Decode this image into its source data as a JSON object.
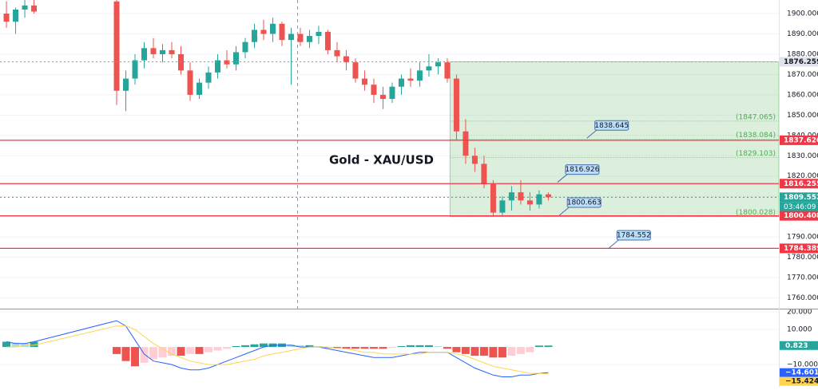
{
  "chart_data": [
    {
      "type": "candlestick",
      "title": "Gold - XAU/USD",
      "xlim": [
        -0.7,
        84.1
      ],
      "ylim": [
        1754.7,
        1906.7
      ],
      "yticks": [
        {
          "value": 1760,
          "label": "1760.000"
        },
        {
          "value": 1770,
          "label": "1770.000"
        },
        {
          "value": 1780,
          "label": "1780.000"
        },
        {
          "value": 1790,
          "label": "1790.000"
        },
        {
          "value": 1800,
          "label": "1800.000"
        },
        {
          "value": 1810,
          "label": "1810.000"
        },
        {
          "value": 1820,
          "label": "1820.000"
        },
        {
          "value": 1830,
          "label": "1830.000"
        },
        {
          "value": 1840,
          "label": "1840.000"
        },
        {
          "value": 1850,
          "label": "1850.000"
        },
        {
          "value": 1860,
          "label": "1860.000"
        },
        {
          "value": 1870,
          "label": "1870.000"
        },
        {
          "value": 1880,
          "label": "1880.000"
        },
        {
          "value": 1890,
          "label": "1890.000"
        },
        {
          "value": 1900,
          "label": "1900.000"
        }
      ],
      "grid": true,
      "up_color": "#26a69a",
      "down_color": "#ef5350",
      "candles": {
        "x": [
          0,
          1,
          2,
          3,
          12,
          13,
          14,
          15,
          16,
          17,
          18,
          19,
          20,
          21,
          22,
          23,
          24,
          25,
          26,
          27,
          28,
          29,
          30,
          31,
          32,
          33,
          34,
          35,
          36,
          37,
          38,
          39,
          40,
          41,
          42,
          43,
          44,
          45,
          46,
          47,
          48,
          49,
          50,
          51,
          52,
          53,
          54,
          55,
          56,
          57,
          58,
          59
        ],
        "open": [
          1900,
          1896,
          1902,
          1904,
          1906,
          1862,
          1868,
          1877,
          1883,
          1880,
          1882,
          1880,
          1872,
          1860,
          1866,
          1871,
          1877,
          1875,
          1881,
          1886,
          1892,
          1890,
          1895,
          1887,
          1890,
          1886,
          1889,
          1891,
          1882,
          1879,
          1876,
          1868,
          1865,
          1860,
          1858,
          1864,
          1868,
          1867,
          1872,
          1874,
          1876,
          1868,
          1842,
          1830,
          1826,
          1816,
          1802,
          1808,
          1812,
          1808,
          1806,
          1811
        ],
        "high": [
          1906,
          1903,
          1907,
          1907,
          1907,
          1872,
          1880,
          1886,
          1888,
          1885,
          1886,
          1884,
          1876,
          1868,
          1874,
          1880,
          1882,
          1884,
          1888,
          1895,
          1897,
          1898,
          1896,
          1893,
          1893,
          1892,
          1894,
          1892,
          1886,
          1882,
          1878,
          1872,
          1868,
          1864,
          1866,
          1870,
          1873,
          1876,
          1880,
          1878,
          1878,
          1870,
          1848,
          1834,
          1830,
          1818,
          1810,
          1815,
          1818,
          1812,
          1813,
          1812
        ],
        "low": [
          1893,
          1890,
          1898,
          1900,
          1855,
          1852,
          1865,
          1873,
          1878,
          1876,
          1878,
          1870,
          1857,
          1858,
          1863,
          1868,
          1873,
          1872,
          1878,
          1883,
          1887,
          1886,
          1884,
          1865,
          1884,
          1883,
          1885,
          1880,
          1876,
          1872,
          1866,
          1862,
          1856,
          1853,
          1856,
          1860,
          1864,
          1864,
          1869,
          1870,
          1866,
          1838,
          1826,
          1822,
          1814,
          1800,
          1800,
          1803,
          1806,
          1803,
          1804,
          1808
        ],
        "close": [
          1896,
          1902,
          1904,
          1901,
          1862,
          1868,
          1877,
          1883,
          1880,
          1882,
          1880,
          1872,
          1860,
          1866,
          1871,
          1877,
          1875,
          1881,
          1886,
          1892,
          1890,
          1895,
          1887,
          1890,
          1886,
          1889,
          1891,
          1882,
          1879,
          1876,
          1868,
          1865,
          1860,
          1858,
          1864,
          1868,
          1867,
          1872,
          1874,
          1876,
          1868,
          1842,
          1830,
          1826,
          1816,
          1802,
          1808,
          1812,
          1808,
          1806,
          1811,
          1809.552
        ]
      },
      "crosshair_x": 31.7,
      "zone": {
        "x_start": 48.3,
        "top": 1876.259,
        "bottom": 1800.028,
        "color": "#4caf50"
      },
      "fib_levels": [
        {
          "value": 1847.065,
          "label": "(1847.065)"
        },
        {
          "value": 1838.084,
          "label": "(1838.084)"
        },
        {
          "value": 1829.103,
          "label": "(1829.103)"
        },
        {
          "value": 1800.028,
          "label": "(1800.028)"
        }
      ],
      "price_tags": [
        {
          "value": 1876.259,
          "label": "1876.259",
          "color": "#e0e3eb",
          "text_color": "#131722",
          "line": "dotted"
        },
        {
          "value": 1837.62,
          "label": "1837.620",
          "color": "#f23645",
          "text_color": "#ffffff",
          "line": "solid"
        },
        {
          "value": 1816.255,
          "label": "1816.255",
          "color": "#f23645",
          "text_color": "#ffffff",
          "line": "solid"
        },
        {
          "value": 1809.552,
          "label": "1809.552",
          "color": "#26a69a",
          "text_color": "#ffffff",
          "line": "dotted",
          "countdown": "03:46:09"
        },
        {
          "value": 1800.408,
          "label": "1800.408",
          "color": "#f23645",
          "text_color": "#ffffff",
          "line": "solid"
        },
        {
          "value": 1784.389,
          "label": "1784.389",
          "color": "#f23645",
          "text_color": "#ffffff",
          "line": "solid"
        }
      ],
      "callouts": [
        {
          "x": 63.2,
          "value": 1838.645,
          "label": "1838.645"
        },
        {
          "x": 60.0,
          "value": 1816.926,
          "label": "1816.926"
        },
        {
          "x": 60.2,
          "value": 1800.663,
          "label": "1800.663"
        },
        {
          "x": 65.6,
          "value": 1784.552,
          "label": "1784.552"
        }
      ]
    },
    {
      "type": "macd",
      "xlim": [
        -0.7,
        84.1
      ],
      "ylim": [
        -22.7,
        21.4
      ],
      "yticks": [
        {
          "value": -10,
          "label": "−10.000"
        },
        {
          "value": 10,
          "label": "10.000"
        },
        {
          "value": 20,
          "label": "20.000"
        }
      ],
      "colors": {
        "up_strong": "#26a69a",
        "up_weak": "#b2dfdb",
        "down_strong": "#ef5350",
        "down_weak": "#ffcdd2"
      },
      "x": [
        0,
        1,
        2,
        3,
        12,
        13,
        14,
        15,
        16,
        17,
        18,
        19,
        20,
        21,
        22,
        23,
        24,
        25,
        26,
        27,
        28,
        29,
        30,
        31,
        32,
        33,
        34,
        35,
        36,
        37,
        38,
        39,
        40,
        41,
        42,
        43,
        44,
        45,
        46,
        47,
        48,
        49,
        50,
        51,
        52,
        53,
        54,
        55,
        56,
        57,
        58,
        59
      ],
      "histogram": [
        3,
        2.5,
        2,
        3,
        -4,
        -8,
        -11,
        -9,
        -7,
        -6,
        -5,
        -5,
        -4,
        -4,
        -3,
        -2,
        -1,
        0.5,
        1,
        1.5,
        2,
        2,
        2,
        1.5,
        1,
        1,
        0.5,
        -0.5,
        -0.5,
        -1,
        -1,
        -1,
        -1,
        -1,
        -0.5,
        0.5,
        1,
        1,
        1,
        0.5,
        -1,
        -3,
        -4,
        -5,
        -5,
        -6,
        -6,
        -5,
        -4,
        -3,
        0.8,
        0.823
      ],
      "series": [
        {
          "color": "#2962ff",
          "values": [
            3,
            2,
            2,
            3,
            15,
            12,
            4,
            -4,
            -8,
            -9,
            -10,
            -12,
            -13,
            -13,
            -12,
            -10,
            -8,
            -6,
            -4,
            -2,
            0,
            1,
            1,
            1,
            0,
            0,
            0,
            -1,
            -2,
            -3,
            -4,
            -5,
            -6,
            -6,
            -6,
            -5,
            -4,
            -3,
            -3,
            -3,
            -3,
            -6,
            -9,
            -12,
            -14,
            -16,
            -17,
            -17,
            -16,
            -16,
            -15,
            -14.601
          ],
          "tag": {
            "value": -14.601,
            "label": "−14.601"
          }
        },
        {
          "color": "#ffd54f",
          "values": [
            0,
            0,
            1,
            1,
            12,
            12,
            10,
            6,
            2,
            -1,
            -4,
            -6,
            -8,
            -9,
            -10,
            -10,
            -10,
            -9,
            -8,
            -7,
            -5,
            -4,
            -3,
            -2,
            -1,
            0,
            0,
            0,
            -1,
            -1,
            -2,
            -3,
            -3,
            -4,
            -4,
            -4,
            -4,
            -4,
            -3,
            -3,
            -3,
            -4,
            -5,
            -7,
            -9,
            -11,
            -12,
            -13,
            -14,
            -15,
            -15,
            -15.424
          ],
          "tag": {
            "value": -15.424,
            "label": "−15.424"
          }
        }
      ],
      "histogram_tag": {
        "value": 0.823,
        "label": "0.823"
      }
    }
  ]
}
